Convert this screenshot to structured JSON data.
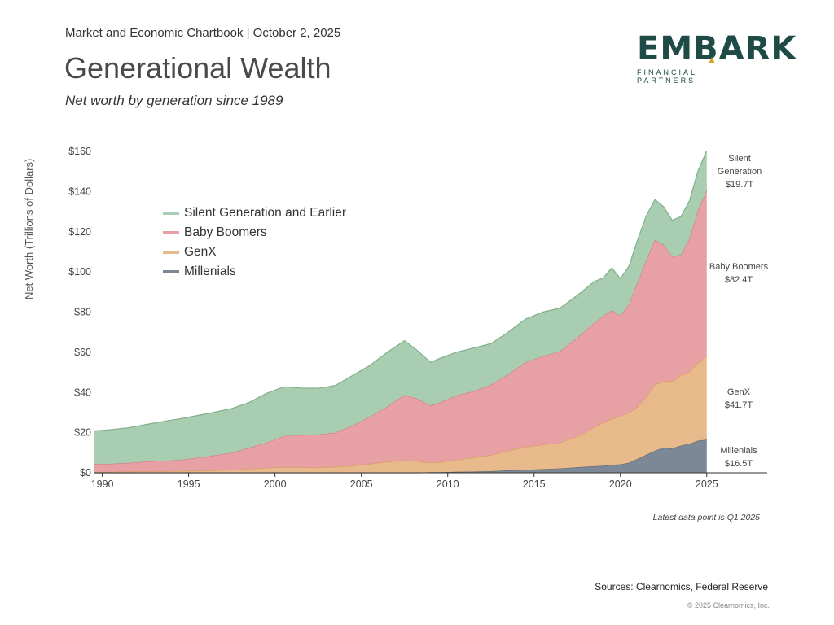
{
  "header": {
    "line": "Market and Economic Chartbook | October 2, 2025",
    "title": "Generational Wealth",
    "subtitle": "Net worth by generation since 1989"
  },
  "logo": {
    "main": "EMBARK",
    "sub": "FINANCIAL PARTNERS"
  },
  "note": "Latest data point is Q1 2025",
  "sources": "Sources: Clearnomics, Federal Reserve",
  "copyright": "© 2025 Clearnomics, Inc.",
  "chart_data": {
    "type": "area",
    "stacked": true,
    "ylabel": "Net Worth (Trillions of Dollars)",
    "xlabel": "",
    "ylim": [
      0,
      160
    ],
    "xlim": [
      1989.5,
      2028.5
    ],
    "yticks": [
      0,
      20,
      40,
      60,
      80,
      100,
      120,
      140,
      160
    ],
    "ytick_labels": [
      "$0",
      "$20",
      "$40",
      "$60",
      "$80",
      "$100",
      "$120",
      "$140",
      "$160"
    ],
    "xticks": [
      1990,
      1995,
      2000,
      2005,
      2010,
      2015,
      2020,
      2025
    ],
    "xtick_labels": [
      "1990",
      "1995",
      "2000",
      "2005",
      "2010",
      "2015",
      "2020",
      "2025"
    ],
    "grid": false,
    "legend_position": "top-left",
    "x": [
      1989.5,
      1990.5,
      1991.5,
      1992.5,
      1993.5,
      1994.5,
      1995.5,
      1996.5,
      1997.5,
      1998.5,
      1999.5,
      2000.5,
      2001.5,
      2002.5,
      2003.5,
      2004.5,
      2005.5,
      2006.5,
      2007.5,
      2008.25,
      2009,
      2009.5,
      2010.5,
      2011.5,
      2012.5,
      2013.5,
      2014.5,
      2015.5,
      2016.5,
      2017.5,
      2018.5,
      2019.0,
      2019.5,
      2020.0,
      2020.5,
      2021.0,
      2021.5,
      2022.0,
      2022.5,
      2023.0,
      2023.5,
      2024.0,
      2024.5,
      2025.0
    ],
    "series": [
      {
        "name": "Millenials",
        "color": "#7c8896",
        "end_label": "Millenials",
        "end_value": "$16.5T",
        "values": [
          0,
          0,
          0,
          0,
          0,
          0,
          0,
          0,
          0,
          0,
          0,
          0,
          0,
          0,
          0,
          0,
          0,
          0,
          0,
          0,
          0.3,
          0.3,
          0.5,
          0.6,
          0.8,
          1.2,
          1.5,
          1.8,
          2.2,
          2.8,
          3.3,
          3.5,
          4,
          4.2,
          5,
          7,
          9,
          11,
          12.5,
          12.2,
          13.5,
          14.5,
          16,
          16.5
        ]
      },
      {
        "name": "GenX",
        "color": "#e8b98a",
        "end_label": "GenX",
        "end_value": "$41.7T",
        "values": [
          0.3,
          0.5,
          0.6,
          0.7,
          0.8,
          0.9,
          1.0,
          1.2,
          1.5,
          2,
          2.5,
          2.8,
          2.7,
          2.6,
          3,
          3.5,
          4.5,
          5.5,
          6.3,
          5.8,
          4.7,
          5,
          6,
          7,
          8,
          9.8,
          11.5,
          12.2,
          12.8,
          15.5,
          19.5,
          21.5,
          23,
          24,
          25,
          26,
          29,
          33,
          33,
          33.5,
          35,
          36,
          39,
          41.7
        ]
      },
      {
        "name": "Baby Boomers",
        "color": "#e7a1a4",
        "end_label": "Baby Boomers",
        "end_value": "$82.4T",
        "values": [
          4,
          4,
          4.3,
          4.8,
          5.2,
          5.5,
          6.5,
          7.5,
          8.5,
          10.5,
          12.5,
          15.5,
          16,
          16.5,
          17,
          20,
          23.5,
          27.5,
          32.5,
          31,
          28.5,
          29.5,
          32,
          33,
          35,
          38,
          42,
          44,
          45.5,
          49,
          52,
          53,
          54,
          50,
          54,
          62,
          68,
          72,
          68,
          62,
          60,
          66,
          76,
          82.4
        ]
      },
      {
        "name": "Silent Generation and Earlier",
        "color": "#a8cdb1",
        "end_label": "Silent\nGeneration",
        "end_value": "$19.7T",
        "values": [
          16.5,
          17,
          17.5,
          18.5,
          19.5,
          20.5,
          21,
          21.5,
          22,
          22.5,
          24.5,
          24.5,
          23.5,
          23,
          23.5,
          25,
          25.5,
          27,
          27,
          24,
          21.5,
          22,
          21.5,
          21.5,
          20.5,
          21,
          21.5,
          22,
          21.5,
          21,
          20.5,
          19,
          21,
          18.5,
          19,
          21,
          22,
          20,
          19,
          18,
          19,
          19,
          19.5,
          19.7
        ]
      }
    ]
  }
}
